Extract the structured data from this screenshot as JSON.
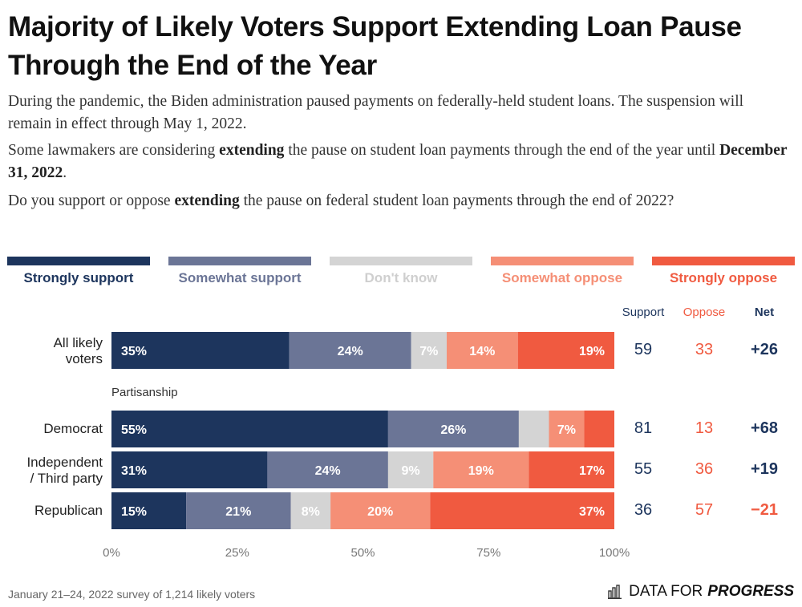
{
  "title": "Majority of Likely Voters Support Extending Loan Pause Through the End of the Year",
  "paragraphs": {
    "p1": "During the pandemic, the Biden administration paused payments on federally-held student loans. The suspension will remain in effect through May 1, 2022.",
    "p2_a": "Some lawmakers are considering ",
    "p2_b": "extending",
    "p2_c": " the pause on student loan payments through the end of the year until ",
    "p2_d": "December 31, 2022",
    "p2_e": ".",
    "p3_a": "Do you support or oppose ",
    "p3_b": "extending",
    "p3_c": " the pause on federal student loan payments through the end of 2022?"
  },
  "colors": {
    "strongly_support": "#1d355d",
    "somewhat_support": "#6b7596",
    "dont_know": "#d4d4d4",
    "somewhat_oppose": "#f58f76",
    "strongly_oppose": "#f05a40",
    "support_text": "#1d355d",
    "oppose_text": "#f05a40"
  },
  "legend": [
    {
      "label": "Strongly support",
      "color": "#1d355d"
    },
    {
      "label": "Somewhat support",
      "color": "#6b7596"
    },
    {
      "label": "Don't know",
      "color": "#d4d4d4"
    },
    {
      "label": "Somewhat oppose",
      "color": "#f58f76"
    },
    {
      "label": "Strongly oppose",
      "color": "#f05a40"
    }
  ],
  "columns": {
    "support": "Support",
    "oppose": "Oppose",
    "net": "Net"
  },
  "group_label": "Partisanship",
  "chart_data": {
    "type": "bar",
    "orientation": "horizontal-stacked",
    "categories": [
      "All likely voters",
      "Democrat",
      "Independent / Third party",
      "Republican"
    ],
    "series": [
      {
        "name": "Strongly support",
        "values": [
          35,
          55,
          31,
          15
        ],
        "labels": [
          "35%",
          "55%",
          "31%",
          "15%"
        ]
      },
      {
        "name": "Somewhat support",
        "values": [
          24,
          26,
          24,
          21
        ],
        "labels": [
          "24%",
          "26%",
          "24%",
          "21%"
        ]
      },
      {
        "name": "Don't know",
        "values": [
          7,
          6,
          9,
          8
        ],
        "labels": [
          "7%",
          "",
          "9%",
          "8%"
        ]
      },
      {
        "name": "Somewhat oppose",
        "values": [
          14,
          7,
          19,
          20
        ],
        "labels": [
          "14%",
          "7%",
          "19%",
          "20%"
        ]
      },
      {
        "name": "Strongly oppose",
        "values": [
          19,
          6,
          17,
          37
        ],
        "labels": [
          "19%",
          "",
          "17%",
          "37%"
        ]
      }
    ],
    "support": [
      "59",
      "81",
      "55",
      "36"
    ],
    "oppose": [
      "33",
      "13",
      "36",
      "57"
    ],
    "net": [
      "+26",
      "+68",
      "+19",
      "−21"
    ],
    "xticks": [
      "0%",
      "25%",
      "50%",
      "75%",
      "100%"
    ],
    "xlim": [
      0,
      100
    ]
  },
  "row_labels": [
    {
      "lines": [
        "All likely",
        "voters"
      ]
    },
    {
      "lines": [
        "Democrat"
      ]
    },
    {
      "lines": [
        "Independent",
        "/ Third party"
      ]
    },
    {
      "lines": [
        "Republican"
      ]
    }
  ],
  "footer": {
    "note": "January 21–24, 2022 survey of 1,214 likely voters",
    "brand_a": "DATA FOR",
    "brand_b": "PROGRESS",
    "logo_icon": "bar-chart-icon"
  }
}
